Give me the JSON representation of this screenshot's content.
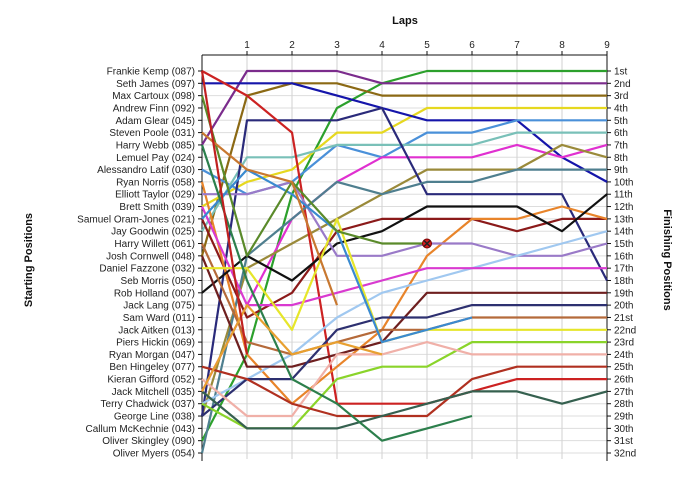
{
  "chart_data": {
    "type": "line",
    "title": "",
    "xlabel": "Laps",
    "ylabel_left": "Starting Positions",
    "ylabel_right": "Finishing Positions",
    "x_ticks": [
      "1",
      "2",
      "3",
      "4",
      "5",
      "6",
      "7",
      "8",
      "9"
    ],
    "xlim": [
      0,
      9
    ],
    "ylim": [
      1,
      32
    ],
    "y_inverted": true,
    "grid": true,
    "starting_labels": [
      "Frankie Kemp (087)",
      "Seth James (097)",
      "Max Cartoux (098)",
      "Andrew Finn (092)",
      "Adam Glear (045)",
      "Steven Poole (031)",
      "Harry Webb (085)",
      "Lemuel Pay (024)",
      "Alessandro Latif (030)",
      "Ryan Norris (058)",
      "Elliott Taylor (029)",
      "Brett Smith (039)",
      "Samuel Oram-Jones (021)",
      "Jay Goodwin (025)",
      "Harry Willett (061)",
      "Josh Cornwell (048)",
      "Daniel Fazzone (032)",
      "Seb Morris (050)",
      "Rob Holland (007)",
      "Jack Lang (075)",
      "Sam Ward (011)",
      "Jack Aitken (013)",
      "Piers Hickin (069)",
      "Ryan Morgan (047)",
      "Ben Hingeley (077)",
      "Kieran Gifford (052)",
      "Jack Mitchell (035)",
      "Terry Chadwick (037)",
      "George Line (038)",
      "Callum McKechnie (043)",
      "Oliver Skingley (090)",
      "Oliver Myers (054)"
    ],
    "finishing_labels": [
      "1st",
      "2nd",
      "3rd",
      "4th",
      "5th",
      "6th",
      "7th",
      "8th",
      "9th",
      "10th",
      "11th",
      "12th",
      "13th",
      "14th",
      "15th",
      "16th",
      "17th",
      "18th",
      "19th",
      "20th",
      "21st",
      "22nd",
      "23rd",
      "24th",
      "25th",
      "26th",
      "27th",
      "28th",
      "29th",
      "30th",
      "31st",
      "32nd"
    ],
    "retirement_marker": {
      "lap": 5,
      "position": 15
    },
    "series": [
      {
        "color": "#2ca02c",
        "values": [
          31,
          24,
          11,
          4,
          2,
          1,
          1,
          1,
          1,
          1
        ]
      },
      {
        "color": "#7b2c8c",
        "values": [
          7,
          1,
          1,
          1,
          2,
          2,
          2,
          2,
          2,
          2
        ]
      },
      {
        "color": "#8b6914",
        "values": [
          16,
          3,
          2,
          2,
          3,
          3,
          3,
          3,
          3,
          3
        ]
      },
      {
        "color": "#e6d81f",
        "values": [
          12,
          10,
          9,
          6,
          6,
          4,
          4,
          4,
          4,
          4
        ]
      },
      {
        "color": "#1515aa",
        "values": [
          2,
          2,
          2,
          3,
          4,
          5,
          5,
          5,
          8,
          10
        ]
      },
      {
        "color": "#4a90d9",
        "values": [
          9,
          11,
          10,
          7,
          8,
          6,
          6,
          5,
          5,
          5
        ]
      },
      {
        "color": "#79c0b8",
        "values": [
          14,
          8,
          8,
          7,
          7,
          7,
          7,
          6,
          6,
          6
        ]
      },
      {
        "color": "#e030d0",
        "values": [
          27,
          20,
          13,
          10,
          8,
          8,
          8,
          7,
          8,
          7
        ]
      },
      {
        "color": "#9a8a3a",
        "values": [
          29,
          17,
          15,
          13,
          11,
          9,
          9,
          9,
          7,
          8
        ]
      },
      {
        "color": "#2a2a7a",
        "values": [
          29,
          5,
          5,
          5,
          4,
          11,
          11,
          11,
          11,
          18
        ]
      },
      {
        "color": "#cc2222",
        "values": [
          1,
          3,
          6,
          28,
          28,
          28,
          27,
          26,
          26,
          26
        ]
      },
      {
        "color": "#4f7f8f",
        "values": [
          32,
          16,
          13,
          10,
          11,
          10,
          10,
          9,
          9,
          9
        ]
      },
      {
        "color": "#8b1a1a",
        "values": [
          13,
          21,
          19,
          14,
          13,
          13,
          13,
          14,
          13,
          13
        ]
      },
      {
        "color": "#e8842a",
        "values": [
          10,
          24,
          28,
          25,
          22,
          16,
          13,
          13,
          12,
          13
        ]
      },
      {
        "color": "#111111",
        "values": [
          19,
          16,
          18,
          15,
          14,
          12,
          12,
          12,
          14,
          11
        ]
      },
      {
        "color": "#9a7ac8",
        "values": [
          11,
          11,
          10,
          16,
          16,
          15,
          15,
          16,
          16,
          15
        ]
      },
      {
        "color": "#a0c8f0",
        "values": [
          28,
          26,
          24,
          21,
          19,
          18,
          17,
          16,
          15,
          14
        ]
      },
      {
        "color": "#d93ad0",
        "values": [
          12,
          20,
          20,
          19,
          18,
          17,
          17,
          17,
          17,
          17
        ]
      },
      {
        "color": "#6e1f1f",
        "values": [
          16,
          25,
          25,
          24,
          23,
          19,
          19,
          19,
          19,
          19
        ]
      },
      {
        "color": "#2d3070",
        "values": [
          29,
          26,
          26,
          22,
          21,
          21,
          20,
          20,
          20,
          20
        ]
      },
      {
        "color": "#b56a3a",
        "values": [
          15,
          23,
          24,
          23,
          22,
          22,
          21,
          21,
          21,
          21
        ]
      },
      {
        "color": "#e6e62a",
        "values": [
          17,
          17,
          22,
          13,
          23,
          22,
          22,
          22,
          22,
          22
        ]
      },
      {
        "color": "#8ad42a",
        "values": [
          28,
          30,
          30,
          26,
          25,
          25,
          23,
          23,
          23,
          23
        ]
      },
      {
        "color": "#f0b0a8",
        "values": [
          26,
          29,
          29,
          24,
          24,
          23,
          24,
          24,
          24,
          24
        ]
      },
      {
        "color": "#b03020",
        "values": [
          25,
          26,
          28,
          29,
          29,
          29,
          26,
          25,
          25,
          25
        ]
      },
      {
        "color": "#35604f",
        "values": [
          27,
          30,
          30,
          30,
          29,
          28,
          27,
          27,
          28,
          27
        ]
      },
      {
        "color": "#3a8ad0",
        "values": [
          13,
          9,
          11,
          14,
          23,
          22,
          21
        ]
      },
      {
        "color": "#2c7f4c",
        "values": [
          7,
          18,
          26,
          28,
          31,
          30,
          29
        ]
      },
      {
        "color": "#5a8a2a",
        "values": [
          3,
          16,
          10,
          14,
          15,
          15
        ]
      },
      {
        "color": "#c87830",
        "values": [
          6,
          9,
          10,
          20
        ]
      },
      {
        "color": "#e8a030",
        "values": [
          27,
          20,
          24,
          23,
          24
        ]
      },
      {
        "color": "#c02020",
        "values": [
          1,
          24
        ]
      }
    ]
  }
}
